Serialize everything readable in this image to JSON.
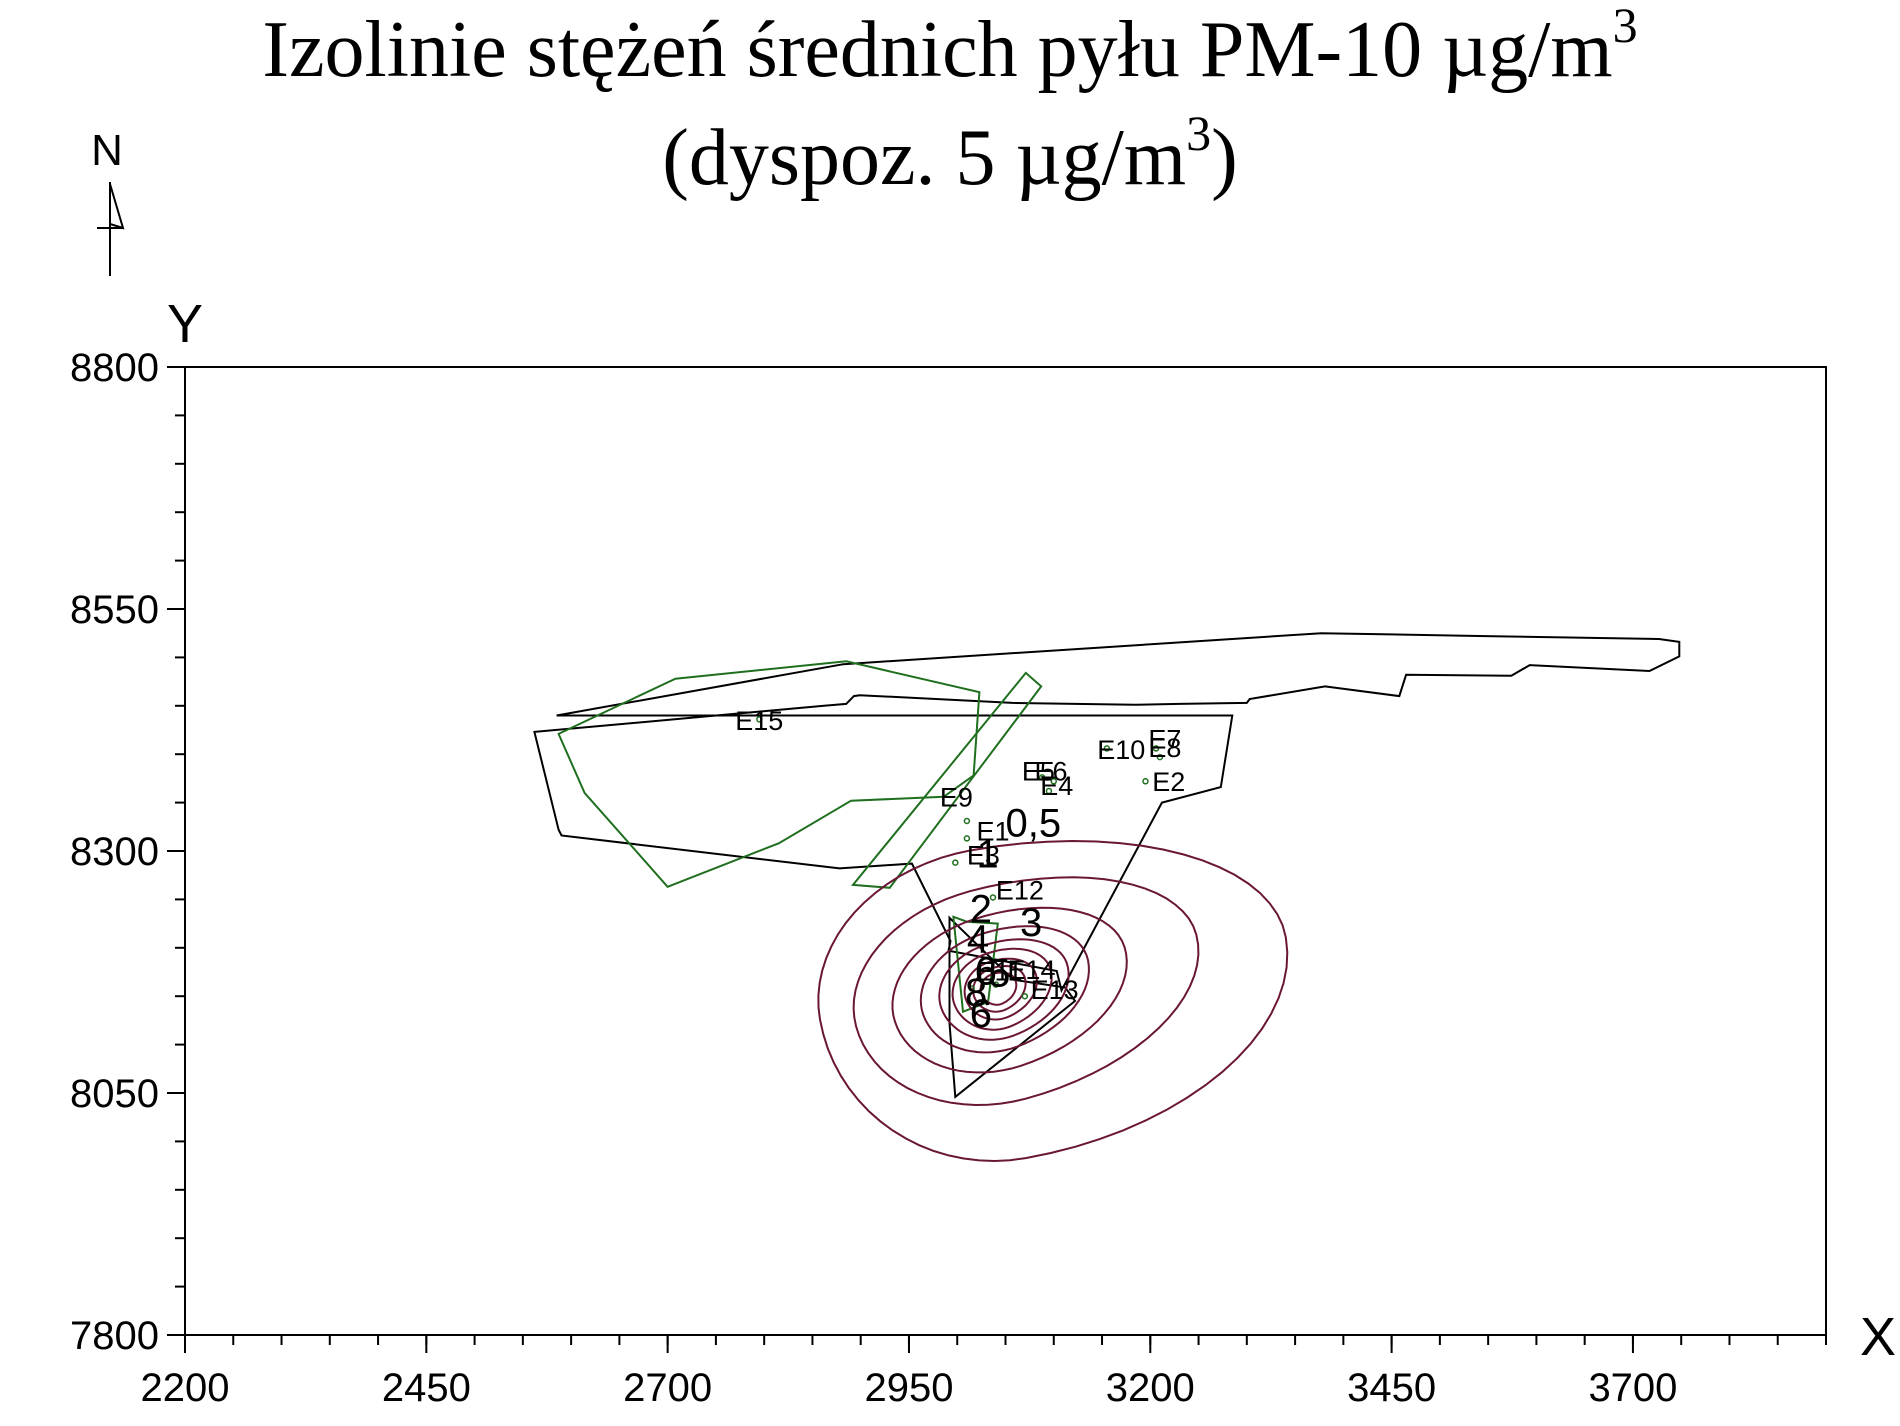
{
  "title": {
    "line1_text": "Izolinie stężeń średnich pyłu PM-10 µg/m",
    "line1_sup": "3",
    "line2_text_a": "(dyspoz. 5 µg/m",
    "line2_sup": "3",
    "line2_text_b": ")"
  },
  "compass": {
    "label": "N",
    "icon": "north-arrow-icon"
  },
  "colors": {
    "axis": "#000000",
    "boundary": "#000000",
    "emitter": "#1f6f1f",
    "isoline": "#6a1636",
    "contour_label": "#000000"
  },
  "chart_data": {
    "type": "contour",
    "xlabel": "X",
    "ylabel": "Y",
    "xlim": [
      2200,
      3900
    ],
    "ylim": [
      7800,
      8800
    ],
    "x_ticks": [
      2200,
      2450,
      2700,
      2950,
      3200,
      3450,
      3700
    ],
    "y_ticks": [
      7800,
      8050,
      8300,
      8550,
      8800
    ],
    "x_minor_step": 50,
    "y_minor_step": 50,
    "grid": false,
    "center": [
      3040,
      8158
    ],
    "isolines": [
      {
        "level": 0.5,
        "rx": [
          305,
          185
        ],
        "ry": [
          145,
          178
        ],
        "tilt_deg": 10
      },
      {
        "level": 1,
        "rx": [
          215,
          150
        ],
        "ry": [
          104,
          118
        ],
        "tilt_deg": 15
      },
      {
        "level": 2,
        "rx": [
          140,
          110
        ],
        "ry": [
          75,
          84
        ],
        "tilt_deg": 18
      },
      {
        "level": 3,
        "rx": [
          100,
          80
        ],
        "ry": [
          58,
          64
        ],
        "tilt_deg": 20
      },
      {
        "level": 4,
        "rx": [
          78,
          60
        ],
        "ry": [
          46,
          52
        ],
        "tilt_deg": 20
      },
      {
        "level": 5,
        "rx": [
          60,
          46
        ],
        "ry": [
          37,
          42
        ],
        "tilt_deg": 22
      },
      {
        "level": 6,
        "rx": [
          44,
          33
        ],
        "ry": [
          28,
          32
        ],
        "tilt_deg": 22
      },
      {
        "level": 7,
        "rx": [
          32,
          24
        ],
        "ry": [
          21,
          24
        ],
        "tilt_deg": 24
      },
      {
        "level": 8,
        "rx": [
          22,
          16
        ],
        "ry": [
          15,
          17
        ],
        "tilt_deg": 25
      }
    ],
    "contour_labels": [
      {
        "text": "0,5",
        "x": 3050,
        "y": 8315
      },
      {
        "text": "1",
        "x": 3020,
        "y": 8283
      },
      {
        "text": "3",
        "x": 3065,
        "y": 8212
      },
      {
        "text": "2",
        "x": 3013,
        "y": 8226
      },
      {
        "text": "4",
        "x": 3010,
        "y": 8195
      },
      {
        "text": "6",
        "x": 3018,
        "y": 8162
      },
      {
        "text": "5",
        "x": 3032,
        "y": 8160
      },
      {
        "text": "8",
        "x": 3008,
        "y": 8140
      },
      {
        "text": "6",
        "x": 3013,
        "y": 8118
      }
    ],
    "boundary_polygons": [
      {
        "name": "plant-boundary",
        "points": [
          [
            2585,
            8440
          ],
          [
            2882,
            8493
          ],
          [
            3377,
            8525
          ],
          [
            3547,
            8522
          ],
          [
            3727,
            8519
          ],
          [
            3748,
            8516
          ],
          [
            3748,
            8501
          ],
          [
            3717,
            8486
          ],
          [
            3593,
            8492
          ],
          [
            3574,
            8481
          ],
          [
            3465,
            8482
          ],
          [
            3458,
            8460
          ],
          [
            3381,
            8470
          ],
          [
            3303,
            8457
          ],
          [
            3300,
            8453
          ],
          [
            3230,
            8452
          ],
          [
            3184,
            8451
          ],
          [
            3057,
            8453
          ],
          [
            2899,
            8461
          ],
          [
            2893,
            8460
          ],
          [
            2885,
            8452
          ],
          [
            2862,
            8450
          ],
          [
            2562,
            8423
          ],
          [
            2587,
            8322
          ],
          [
            2590,
            8316
          ],
          [
            2878,
            8282
          ],
          [
            2953,
            8287
          ],
          [
            2993,
            8207
          ],
          [
            2991,
            8197
          ],
          [
            3103,
            8176
          ],
          [
            3108,
            8156
          ],
          [
            3212,
            8350
          ],
          [
            3273,
            8366
          ],
          [
            3285,
            8440
          ]
        ]
      },
      {
        "name": "inner-boundary",
        "points": [
          [
            2992,
            8231
          ],
          [
            3058,
            8167
          ],
          [
            3112,
            8159
          ],
          [
            3122,
            8145
          ],
          [
            2998,
            8046
          ],
          [
            2992,
            8122
          ],
          [
            2992,
            8231
          ]
        ]
      }
    ],
    "emitter_polygons": [
      {
        "name": "E15-area",
        "points": [
          [
            2587,
            8421
          ],
          [
            2708,
            8478
          ],
          [
            2885,
            8496
          ],
          [
            3023,
            8464
          ],
          [
            3017,
            8378
          ],
          [
            2986,
            8356
          ],
          [
            2890,
            8352
          ],
          [
            2815,
            8308
          ],
          [
            2700,
            8263
          ],
          [
            2614,
            8360
          ],
          [
            2587,
            8421
          ]
        ]
      },
      {
        "name": "E9-strip",
        "points": [
          [
            2892,
            8265
          ],
          [
            3071,
            8484
          ],
          [
            3087,
            8470
          ],
          [
            2930,
            8262
          ],
          [
            2892,
            8265
          ]
        ]
      },
      {
        "name": "E12-area",
        "points": [
          [
            2996,
            8232
          ],
          [
            3010,
            8227
          ],
          [
            3042,
            8225
          ],
          [
            3032,
            8144
          ],
          [
            3006,
            8134
          ],
          [
            2996,
            8232
          ]
        ]
      }
    ],
    "emitter_points": [
      {
        "label": "E15",
        "x": 2795,
        "y": 8436,
        "lx": 2770,
        "ly": 8425
      },
      {
        "label": "E9",
        "x": 3010,
        "y": 8331,
        "lx": 2982,
        "ly": 8346
      },
      {
        "label": "E10",
        "x": 3155,
        "y": 8406,
        "lx": 3145,
        "ly": 8395
      },
      {
        "label": "E7",
        "x": 3206,
        "y": 8406,
        "lx": 3198,
        "ly": 8406
      },
      {
        "label": "E8",
        "x": 3210,
        "y": 8397,
        "lx": 3198,
        "ly": 8397
      },
      {
        "label": "E2",
        "x": 3195,
        "y": 8372,
        "lx": 3202,
        "ly": 8362
      },
      {
        "label": "E5",
        "x": 3088,
        "y": 8376,
        "lx": 3067,
        "ly": 8373
      },
      {
        "label": "E6",
        "x": 3100,
        "y": 8372,
        "lx": 3080,
        "ly": 8373
      },
      {
        "label": "E4",
        "x": 3095,
        "y": 8362,
        "lx": 3086,
        "ly": 8358
      },
      {
        "label": "E1",
        "x": 3010,
        "y": 8313,
        "lx": 3020,
        "ly": 8311
      },
      {
        "label": "E3",
        "x": 2998,
        "y": 8288,
        "lx": 3010,
        "ly": 8286
      },
      {
        "label": "E12",
        "x": 3037,
        "y": 8252,
        "lx": 3040,
        "ly": 8250
      },
      {
        "label": "E11",
        "x": 3015,
        "y": 8158,
        "lx": 3020,
        "ly": 8166
      },
      {
        "label": "E14",
        "x": 3040,
        "y": 8162,
        "lx": 3052,
        "ly": 8168
      },
      {
        "label": "E13",
        "x": 3070,
        "y": 8150,
        "lx": 3076,
        "ly": 8147
      }
    ]
  }
}
